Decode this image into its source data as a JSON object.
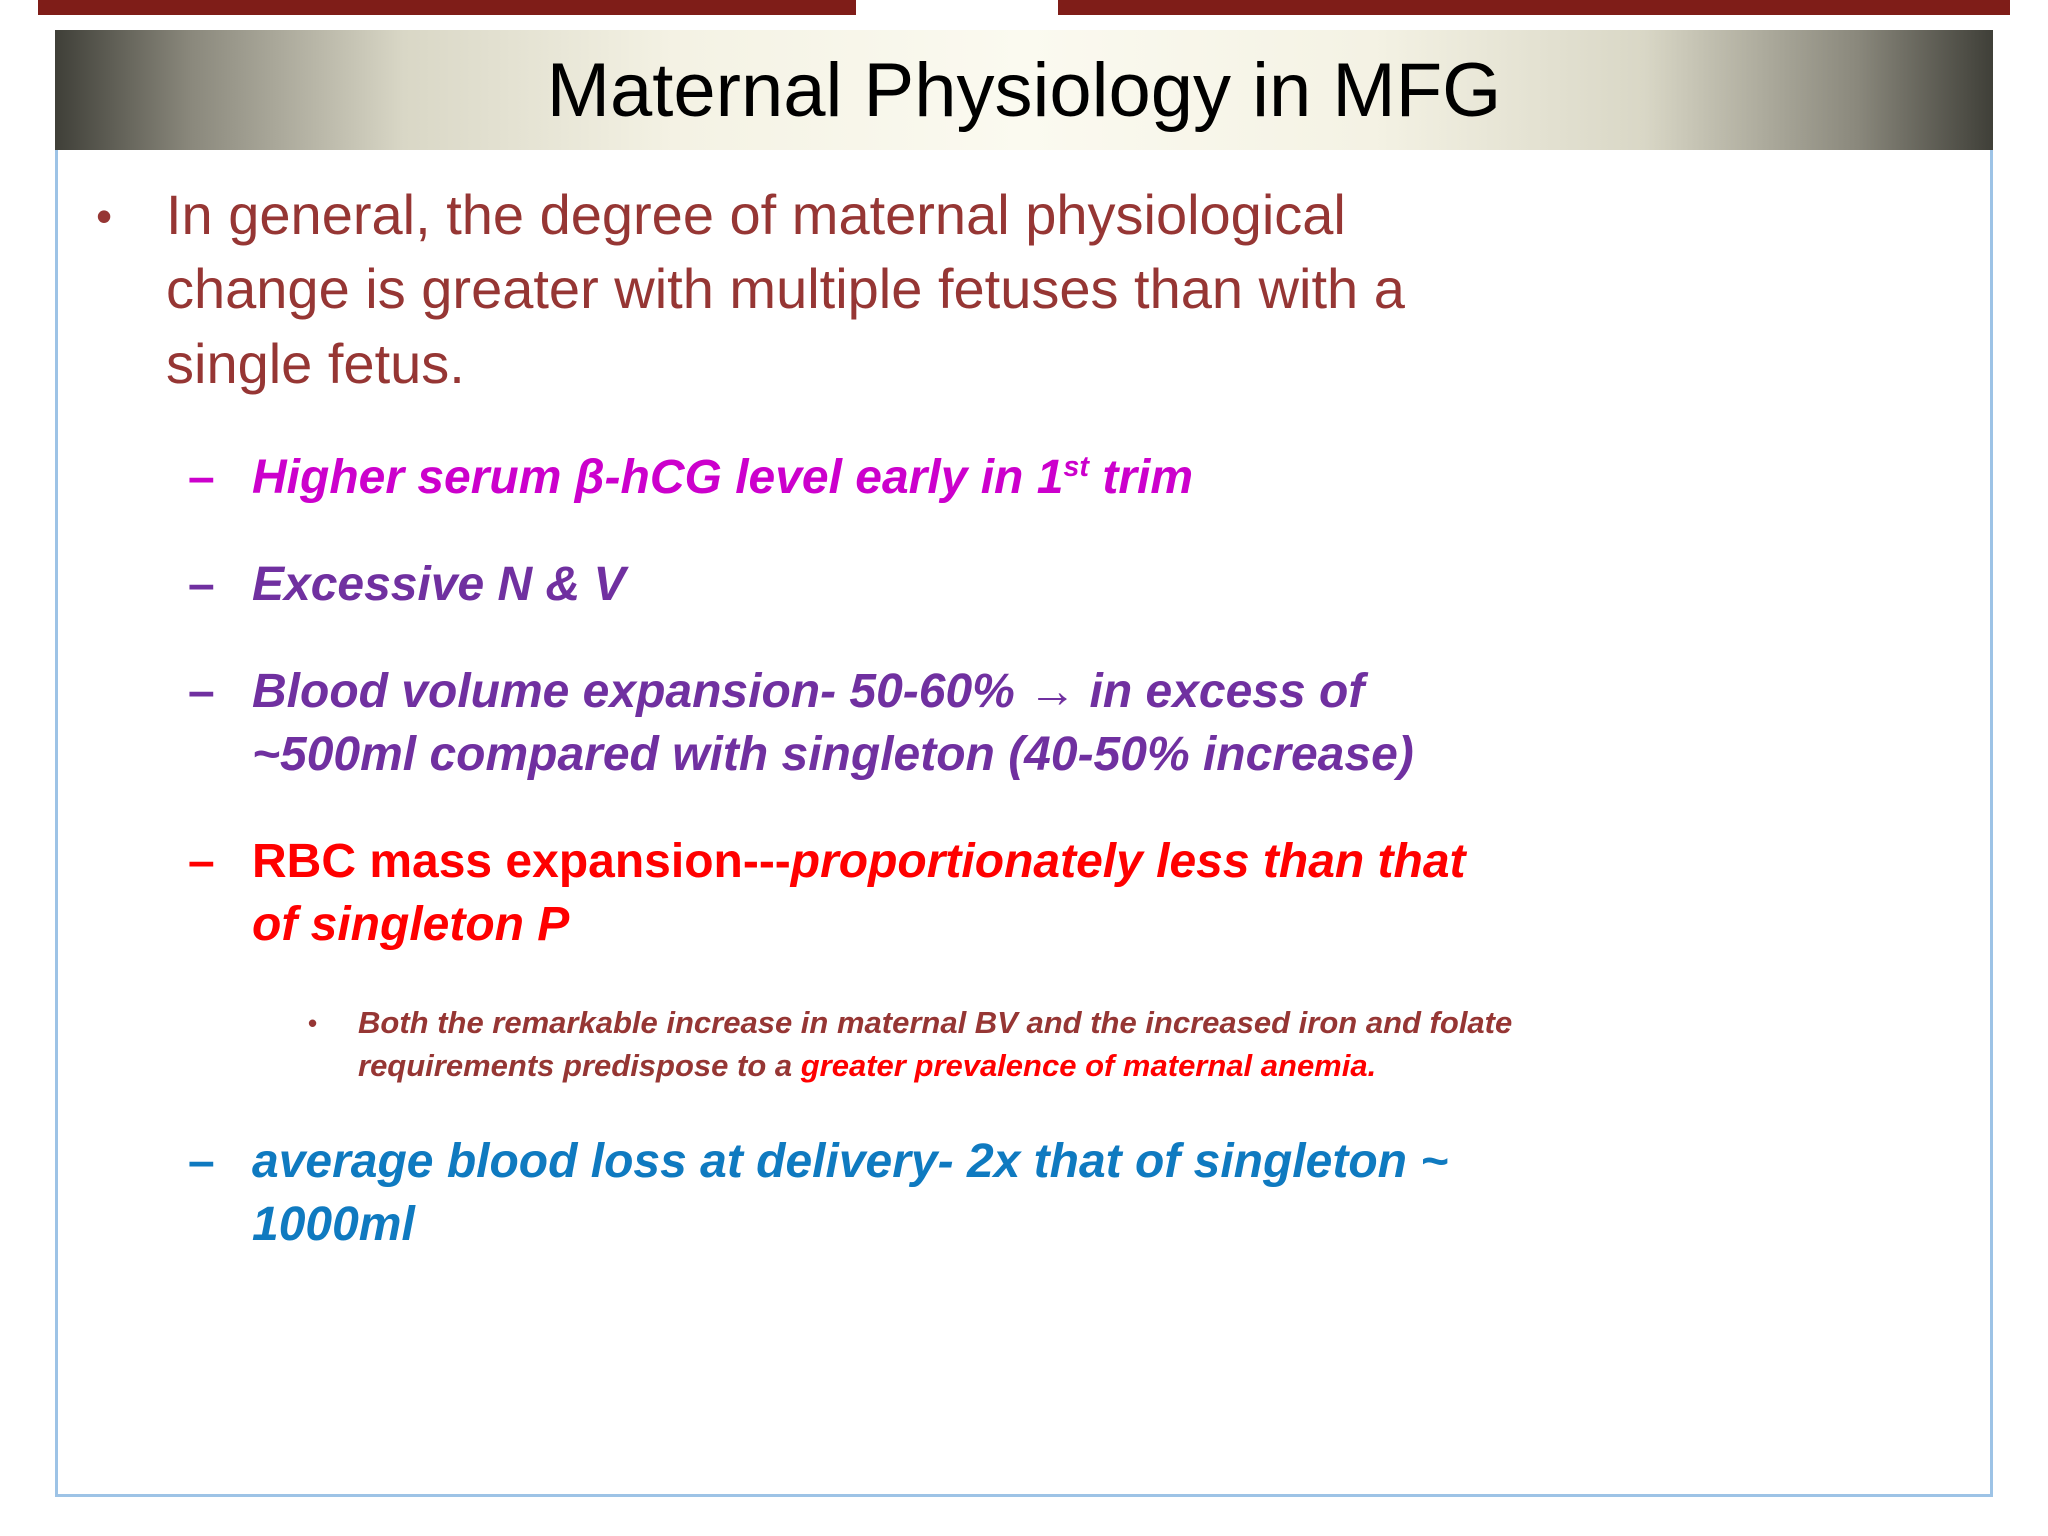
{
  "title": "Maternal Physiology in MFG",
  "markers": {
    "main_bullet": "•",
    "dash": "–",
    "small_bullet": "•"
  },
  "bullets": {
    "main": "In general, the degree of maternal physiological\nchange is greater with multiple fetuses than with a\nsingle fetus.",
    "hcg": {
      "pre": "Higher serum β-hCG level early in 1",
      "sup": "st",
      "post": " trim"
    },
    "nausea": "Excessive N & V",
    "blood_volume": {
      "pre": "Blood volume expansion- 50-60% ",
      "arrow": "→",
      "post": " in excess of\n~500ml compared with singleton (40-50% increase)"
    },
    "rbc": {
      "bold": "RBC mass expansion",
      "dashes": "---",
      "italic": "proportionately less than that\nof singleton P"
    },
    "anemia": {
      "normal": "Both the remarkable increase in maternal BV and the increased iron and folate\nrequirements predispose to a ",
      "highlight": "greater prevalence of maternal anemia."
    },
    "blood_loss": "average blood loss at delivery- 2x that of singleton ~\n1000ml"
  },
  "colors": {
    "main_text": "#963634",
    "hcg_magenta": "#cc00cc",
    "purple": "#7030a0",
    "red": "#ff0000",
    "anemia_base": "#963634",
    "blue": "#0f7ac0",
    "box_border": "#9dc3e6",
    "top_strip": "#7f1d18",
    "title_text": "#000000"
  }
}
